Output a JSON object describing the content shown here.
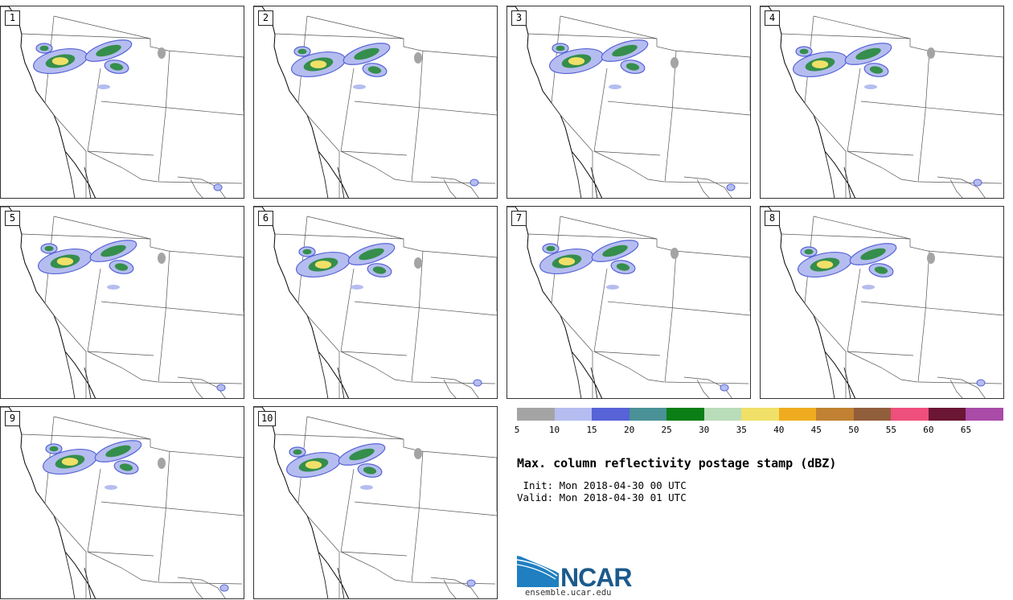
{
  "members": [
    "1",
    "2",
    "3",
    "4",
    "5",
    "6",
    "7",
    "8",
    "9",
    "10"
  ],
  "colorbar": {
    "colors": [
      "#a4a4a4",
      "#b5bdf0",
      "#5763d6",
      "#4a9198",
      "#0b7f16",
      "#b9ddb8",
      "#f0e068",
      "#eeac1e",
      "#c08232",
      "#915e3c",
      "#ee4f7c",
      "#6b1634",
      "#aa4ba8"
    ],
    "ticks": [
      "5",
      "10",
      "15",
      "20",
      "25",
      "30",
      "35",
      "40",
      "45",
      "50",
      "55",
      "60",
      "65"
    ]
  },
  "title": "Max. column reflectivity postage stamp (dBZ)",
  "init": " Init: Mon 2018-04-30 00 UTC",
  "valid": "Valid: Mon 2018-04-30 01 UTC",
  "logo": {
    "name": "NCAR",
    "url": "ensemble.ucar.edu"
  }
}
